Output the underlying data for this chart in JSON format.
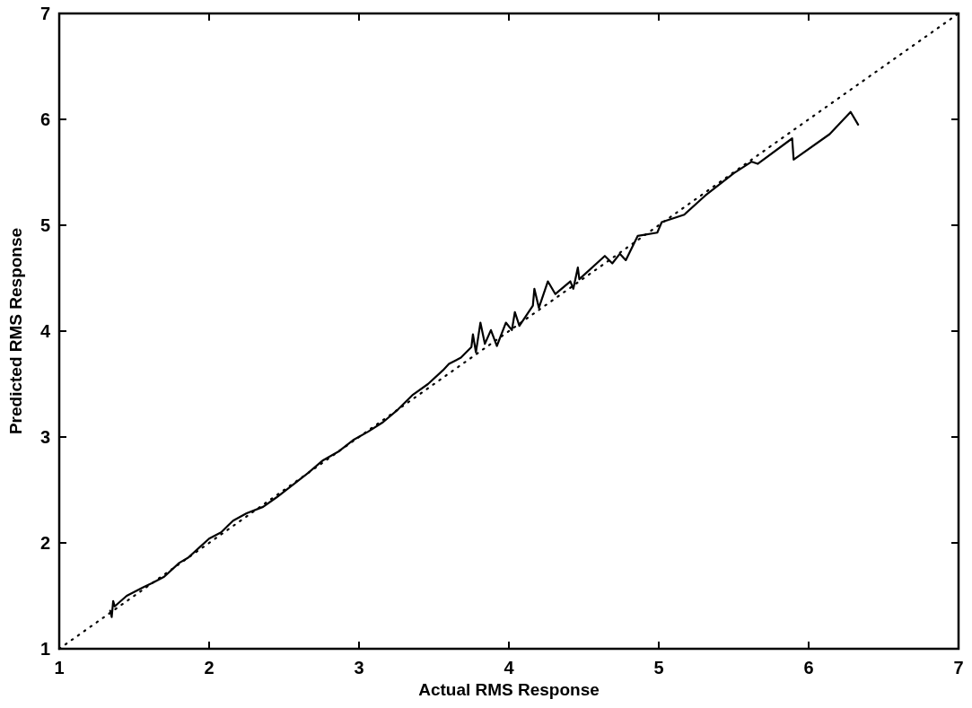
{
  "chart_data": {
    "type": "line",
    "xlabel": "Actual RMS Response",
    "ylabel": "Predicted RMS Response",
    "xlim": [
      1,
      7
    ],
    "ylim": [
      1,
      7
    ],
    "xticks": [
      1,
      2,
      3,
      4,
      5,
      6,
      7
    ],
    "yticks": [
      1,
      2,
      3,
      4,
      5,
      6,
      7
    ],
    "grid": false,
    "series": [
      {
        "color": "#000000",
        "line_style": "solid",
        "x": [
          1.34,
          1.35,
          1.36,
          1.37,
          1.45,
          1.56,
          1.62,
          1.7,
          1.8,
          1.86,
          1.93,
          2.0,
          2.08,
          2.16,
          2.25,
          2.36,
          2.45,
          2.56,
          2.66,
          2.76,
          2.86,
          2.96,
          3.06,
          3.16,
          3.26,
          3.36,
          3.46,
          3.56,
          3.6,
          3.68,
          3.75,
          3.76,
          3.78,
          3.81,
          3.84,
          3.88,
          3.92,
          3.98,
          4.02,
          4.04,
          4.07,
          4.16,
          4.17,
          4.2,
          4.26,
          4.31,
          4.41,
          4.43,
          4.46,
          4.47,
          4.64,
          4.69,
          4.74,
          4.78,
          4.86,
          4.99,
          5.02,
          5.17,
          5.31,
          5.5,
          5.62,
          5.66,
          5.89,
          5.9,
          6.14,
          6.28,
          6.33
        ],
        "values": [
          1.36,
          1.3,
          1.45,
          1.4,
          1.5,
          1.58,
          1.62,
          1.68,
          1.81,
          1.86,
          1.95,
          2.04,
          2.1,
          2.21,
          2.28,
          2.34,
          2.43,
          2.55,
          2.66,
          2.78,
          2.86,
          2.97,
          3.05,
          3.14,
          3.26,
          3.4,
          3.5,
          3.63,
          3.69,
          3.75,
          3.85,
          3.97,
          3.8,
          4.08,
          3.88,
          4.01,
          3.86,
          4.08,
          4.01,
          4.18,
          4.05,
          4.24,
          4.4,
          4.22,
          4.47,
          4.35,
          4.47,
          4.4,
          4.6,
          4.49,
          4.71,
          4.64,
          4.73,
          4.67,
          4.9,
          4.93,
          5.03,
          5.1,
          5.28,
          5.49,
          5.6,
          5.58,
          5.82,
          5.62,
          5.86,
          6.07,
          5.95
        ]
      },
      {
        "color": "#000000",
        "line_style": "dotted",
        "x": [
          1,
          7
        ],
        "values": [
          1,
          7
        ]
      }
    ]
  }
}
